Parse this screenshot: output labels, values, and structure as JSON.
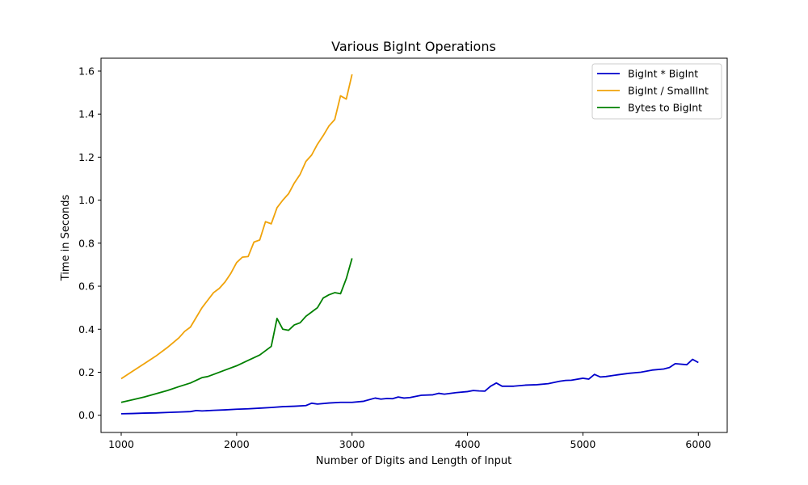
{
  "chart_data": {
    "type": "line",
    "title": "Various BigInt Operations",
    "xlabel": "Number of Digits and Length of Input",
    "ylabel": "Time in Seconds",
    "xlim": [
      825,
      6250
    ],
    "ylim": [
      -0.08,
      1.66
    ],
    "xticks": [
      1000,
      2000,
      3000,
      4000,
      5000,
      6000
    ],
    "yticks": [
      0.0,
      0.2,
      0.4,
      0.6,
      0.8,
      1.0,
      1.2,
      1.4,
      1.6
    ],
    "xtick_labels": [
      "1000",
      "2000",
      "3000",
      "4000",
      "5000",
      "6000"
    ],
    "ytick_labels": [
      "0.0",
      "0.2",
      "0.4",
      "0.6",
      "0.8",
      "1.0",
      "1.2",
      "1.4",
      "1.6"
    ],
    "grid": false,
    "legend_position": "top-right",
    "series": [
      {
        "name": "BigInt * BigInt",
        "color": "#0000cc",
        "x": [
          1000,
          1100,
          1200,
          1300,
          1400,
          1500,
          1600,
          1650,
          1700,
          1800,
          1900,
          2000,
          2100,
          2200,
          2300,
          2400,
          2500,
          2600,
          2650,
          2700,
          2800,
          2900,
          3000,
          3100,
          3200,
          3250,
          3300,
          3350,
          3400,
          3450,
          3500,
          3600,
          3700,
          3750,
          3800,
          3900,
          4000,
          4050,
          4100,
          4150,
          4200,
          4250,
          4300,
          4400,
          4500,
          4600,
          4700,
          4800,
          4850,
          4900,
          5000,
          5050,
          5100,
          5150,
          5200,
          5300,
          5400,
          5500,
          5600,
          5700,
          5750,
          5800,
          5900,
          5950,
          6000
        ],
        "y": [
          0.007,
          0.008,
          0.01,
          0.011,
          0.013,
          0.015,
          0.017,
          0.022,
          0.02,
          0.023,
          0.025,
          0.028,
          0.03,
          0.033,
          0.036,
          0.04,
          0.042,
          0.045,
          0.056,
          0.052,
          0.057,
          0.06,
          0.06,
          0.065,
          0.08,
          0.075,
          0.078,
          0.077,
          0.085,
          0.08,
          0.082,
          0.093,
          0.095,
          0.102,
          0.098,
          0.105,
          0.11,
          0.115,
          0.113,
          0.112,
          0.135,
          0.15,
          0.135,
          0.135,
          0.14,
          0.142,
          0.147,
          0.158,
          0.162,
          0.163,
          0.172,
          0.168,
          0.19,
          0.178,
          0.18,
          0.188,
          0.195,
          0.2,
          0.21,
          0.215,
          0.222,
          0.24,
          0.235,
          0.26,
          0.245
        ]
      },
      {
        "name": "BigInt / SmallInt",
        "color": "#f0a30a",
        "x": [
          1000,
          1100,
          1200,
          1300,
          1400,
          1500,
          1550,
          1600,
          1700,
          1800,
          1850,
          1900,
          1950,
          2000,
          2050,
          2100,
          2150,
          2200,
          2250,
          2300,
          2350,
          2400,
          2450,
          2500,
          2550,
          2600,
          2650,
          2700,
          2750,
          2800,
          2850,
          2900,
          2950,
          3000
        ],
        "y": [
          0.17,
          0.205,
          0.24,
          0.275,
          0.315,
          0.36,
          0.39,
          0.41,
          0.5,
          0.57,
          0.59,
          0.62,
          0.66,
          0.71,
          0.735,
          0.738,
          0.805,
          0.815,
          0.9,
          0.89,
          0.965,
          1.0,
          1.03,
          1.08,
          1.12,
          1.18,
          1.21,
          1.26,
          1.3,
          1.345,
          1.375,
          1.485,
          1.47,
          1.585
        ]
      },
      {
        "name": "Bytes to BigInt",
        "color": "#008000",
        "x": [
          1000,
          1100,
          1200,
          1300,
          1400,
          1500,
          1600,
          1700,
          1750,
          1800,
          1900,
          2000,
          2100,
          2200,
          2300,
          2350,
          2400,
          2450,
          2500,
          2550,
          2600,
          2650,
          2700,
          2750,
          2800,
          2850,
          2900,
          2950,
          3000
        ],
        "y": [
          0.06,
          0.072,
          0.085,
          0.1,
          0.115,
          0.133,
          0.15,
          0.175,
          0.18,
          0.19,
          0.21,
          0.23,
          0.255,
          0.28,
          0.32,
          0.45,
          0.4,
          0.395,
          0.42,
          0.43,
          0.46,
          0.48,
          0.5,
          0.545,
          0.56,
          0.57,
          0.565,
          0.635,
          0.73
        ]
      }
    ]
  }
}
